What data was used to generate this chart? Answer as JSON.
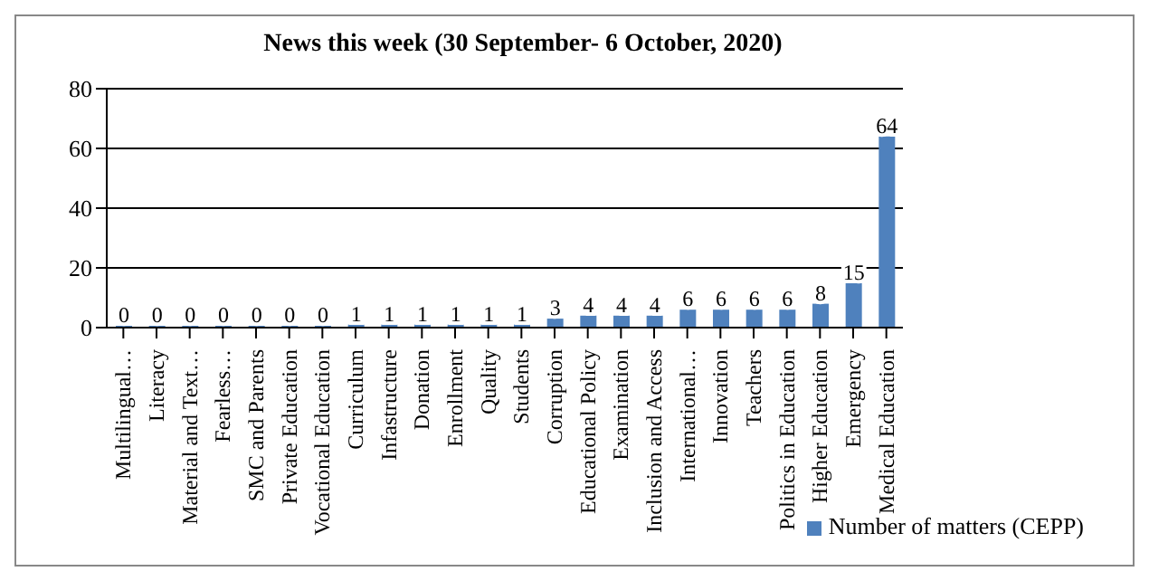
{
  "chart_data": {
    "type": "bar",
    "title": "News this week (30 September- 6 October, 2020)",
    "categories": [
      "Multilingual…",
      "Literacy",
      "Material and Text…",
      "Fearless…",
      "SMC and Parents",
      "Private Education",
      "Vocational Education",
      "Curriculum",
      "Infastructure",
      "Donation",
      "Enrollment",
      "Quality",
      "Students",
      "Corruption",
      "Educational Policy",
      "Examination",
      "Inclusion and Access",
      "International…",
      "Innovation",
      "Teachers",
      "Politics in Education",
      "Higher Education",
      "Emergency",
      "Medical Education"
    ],
    "series": [
      {
        "name": "Number of matters (CEPP)",
        "color": "#4f81bd",
        "values": [
          0,
          0,
          0,
          0,
          0,
          0,
          0,
          1,
          1,
          1,
          1,
          1,
          1,
          3,
          4,
          4,
          4,
          6,
          6,
          6,
          6,
          8,
          15,
          64
        ]
      }
    ],
    "ylim": [
      0,
      80
    ],
    "yticks": [
      0,
      20,
      40,
      60,
      80
    ],
    "grid": "y",
    "legend": "bottom right",
    "data_labels": true
  }
}
